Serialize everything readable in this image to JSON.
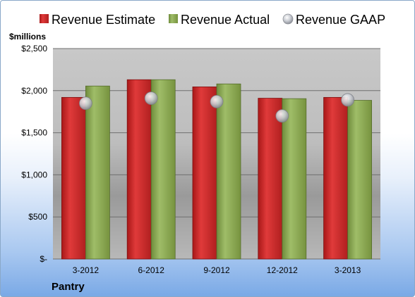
{
  "chart_data": {
    "type": "bar",
    "title": "",
    "unit_label": "$millions",
    "company": "Pantry",
    "categories": [
      "3-2012",
      "6-2012",
      "9-2012",
      "12-2012",
      "3-2013"
    ],
    "series": [
      {
        "name": "Revenue Estimate",
        "type": "bar",
        "color": "#d42a2a",
        "values": [
          1920,
          2130,
          2045,
          1910,
          1920
        ]
      },
      {
        "name": "Revenue Actual",
        "type": "bar",
        "color": "#8fad5a",
        "values": [
          2055,
          2130,
          2080,
          1905,
          1885
        ]
      },
      {
        "name": "Revenue GAAP",
        "type": "scatter",
        "color": "#c0c4cc",
        "values": [
          1850,
          1910,
          1870,
          1700,
          1890
        ]
      }
    ],
    "y_ticks": [
      "$-",
      "$500",
      "$1,000",
      "$1,500",
      "$2,000",
      "$2,500"
    ],
    "y_tick_values": [
      0,
      500,
      1000,
      1500,
      2000,
      2500
    ],
    "ylim": [
      0,
      2500
    ],
    "grid": true,
    "legend_position": "top"
  }
}
